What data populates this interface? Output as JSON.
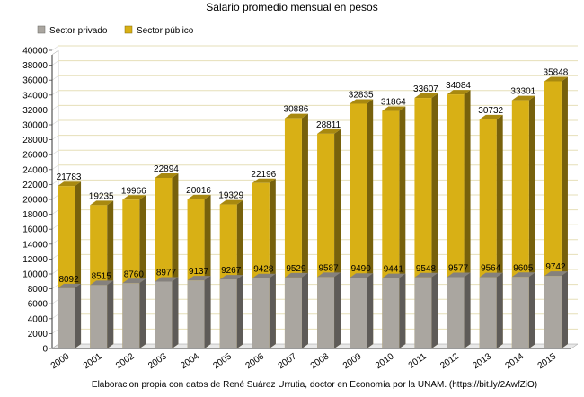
{
  "chart_data": {
    "type": "bar",
    "title": "Salario promedio mensual en pesos",
    "source": "Elaboracion propia con datos de René Suárez Urrutia, doctor en Economía por la UNAM. (https://bit.ly/2AwfZiO)",
    "categories": [
      "2000",
      "2001",
      "2002",
      "2003",
      "2004",
      "2005",
      "2006",
      "2007",
      "2008",
      "2009",
      "2010",
      "2011",
      "2012",
      "2013",
      "2014",
      "2015"
    ],
    "series": [
      {
        "name": "Sector privado",
        "color": "#aaa6a0",
        "values": [
          8092,
          8515,
          8760,
          8977,
          9137,
          9267,
          9428,
          9529,
          9587,
          9490,
          9441,
          9548,
          9577,
          9564,
          9605,
          9742
        ]
      },
      {
        "name": "Sector público",
        "color": "#d8b015",
        "values": [
          21783,
          19235,
          19966,
          22894,
          20016,
          19329,
          22196,
          30886,
          28811,
          32835,
          31864,
          33607,
          34084,
          30732,
          33301,
          35848
        ]
      }
    ],
    "ylim": [
      0,
      40000
    ],
    "ytick_step": 2000,
    "grid": true,
    "legend_position": "top-left",
    "xlabel": "",
    "ylabel": ""
  }
}
